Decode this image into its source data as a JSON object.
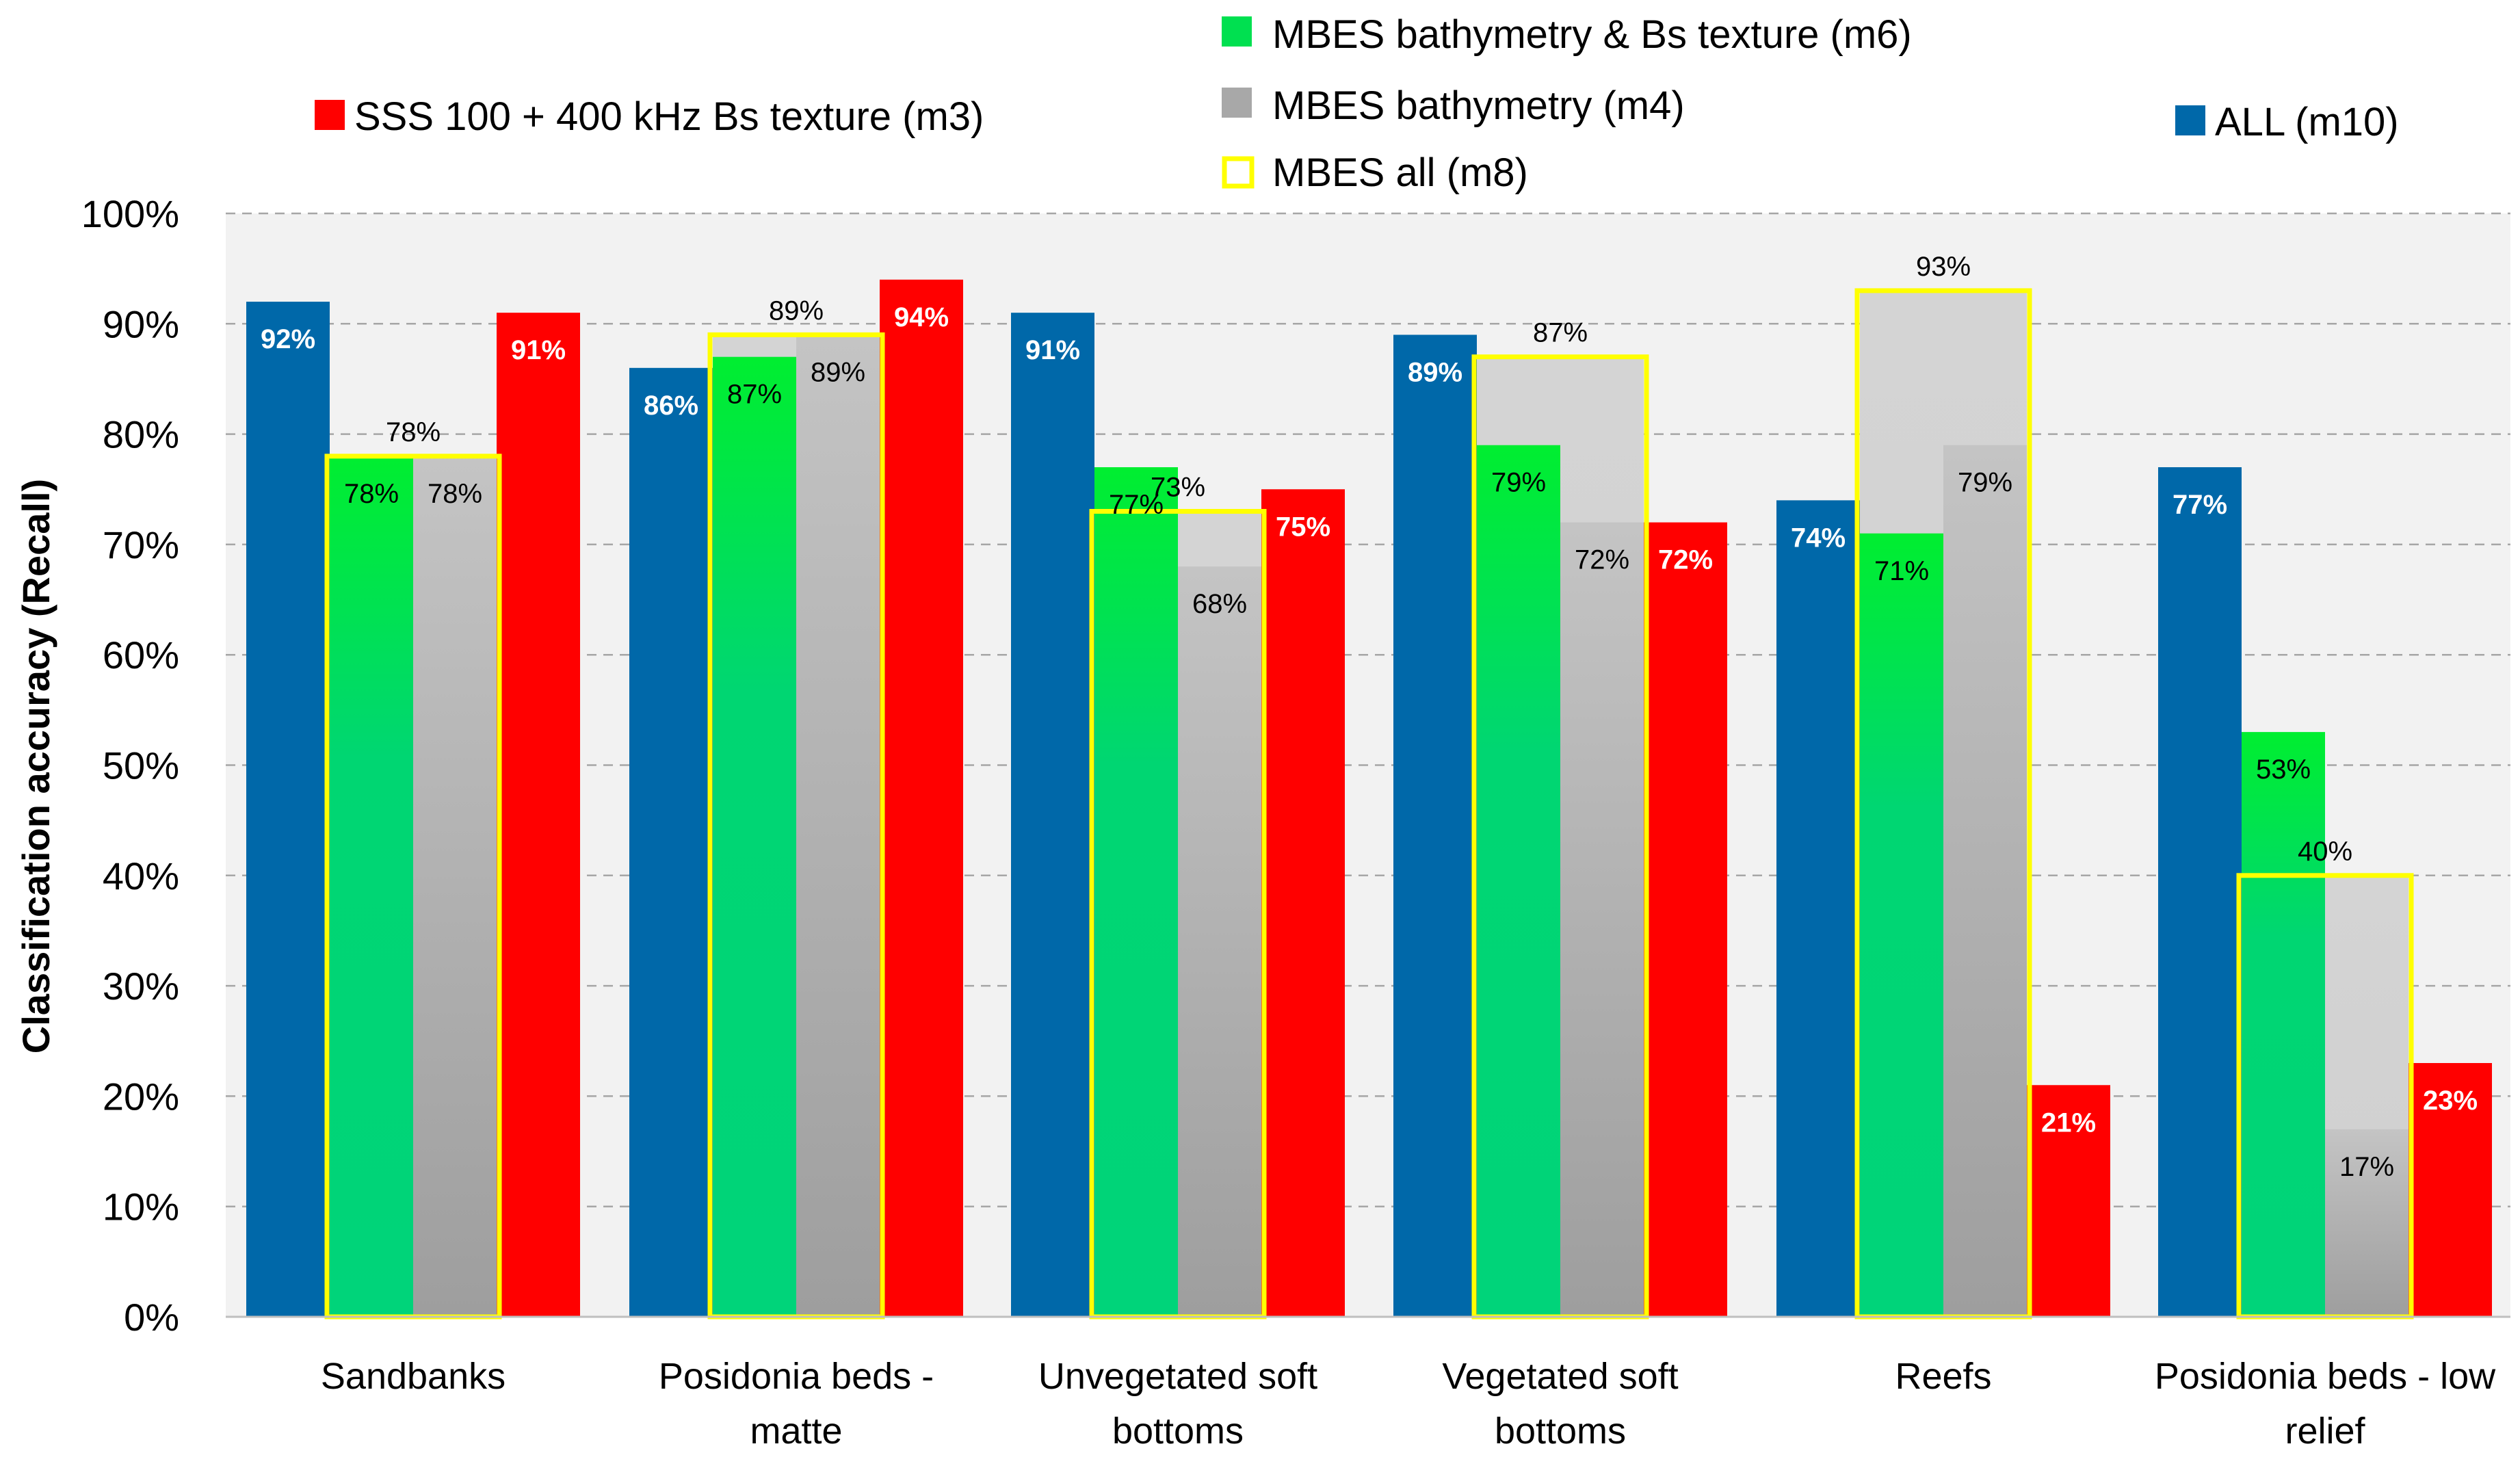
{
  "chart_data": {
    "type": "bar",
    "title": "",
    "xlabel": "",
    "ylabel": "Classification accuracy (Recall)",
    "ylim": [
      0,
      100
    ],
    "yticks": [
      "0%",
      "10%",
      "20%",
      "30%",
      "40%",
      "50%",
      "60%",
      "70%",
      "80%",
      "90%",
      "100%"
    ],
    "grid": true,
    "categories": [
      "Sandbanks",
      "Posidonia beds - matte",
      "Unvegetated soft bottoms",
      "Vegetated soft bottoms",
      "Reefs",
      "Posidonia beds - low relief"
    ],
    "category_lines": [
      [
        "Sandbanks"
      ],
      [
        "Posidonia beds -",
        "matte"
      ],
      [
        "Unvegetated soft",
        "bottoms"
      ],
      [
        "Vegetated soft",
        "bottoms"
      ],
      [
        "Reefs"
      ],
      [
        "Posidonia beds - low",
        "relief"
      ]
    ],
    "series": [
      {
        "name": "ALL (m10)",
        "color": "#0068A9",
        "values": [
          92,
          86,
          91,
          89,
          74,
          77
        ],
        "labels": [
          "92%",
          "86%",
          "91%",
          "89%",
          "74%",
          "77%"
        ]
      },
      {
        "name": "MBES bathymetry & Bs texture (m6)",
        "color": "#00D27A",
        "values": [
          78,
          87,
          77,
          79,
          71,
          53
        ],
        "labels": [
          "78%",
          "87%",
          "77%",
          "79%",
          "71%",
          "53%"
        ]
      },
      {
        "name": "MBES bathymetry (m4)",
        "color": "#A8A8A8",
        "values": [
          78,
          89,
          68,
          72,
          79,
          17
        ],
        "labels": [
          "78%",
          "89%",
          "68%",
          "72%",
          "79%",
          "17%"
        ]
      },
      {
        "name": "SSS 100 + 400 kHz Bs texture (m3)",
        "color": "#FF0000",
        "values": [
          91,
          94,
          75,
          72,
          21,
          23
        ],
        "labels": [
          "91%",
          "94%",
          "75%",
          "72%",
          "21%",
          "23%"
        ]
      },
      {
        "name": "MBES all (m8)",
        "color": "#FFFF00",
        "outline_only": true,
        "values": [
          78,
          89,
          73,
          87,
          93,
          40
        ],
        "labels": [
          "78%",
          "89%",
          "73%",
          "87%",
          "93%",
          "40%"
        ]
      }
    ],
    "legend": [
      {
        "name": "MBES bathymetry & Bs texture (m6)",
        "color": "#00E050"
      },
      {
        "name": "SSS 100 + 400 kHz Bs texture (m3)",
        "color": "#FF0000"
      },
      {
        "name": "MBES bathymetry (m4)",
        "color": "#A8A8A8"
      },
      {
        "name": "ALL (m10)",
        "color": "#0068A9"
      },
      {
        "name": "MBES all (m8)",
        "color": "#FFFF00"
      }
    ]
  }
}
